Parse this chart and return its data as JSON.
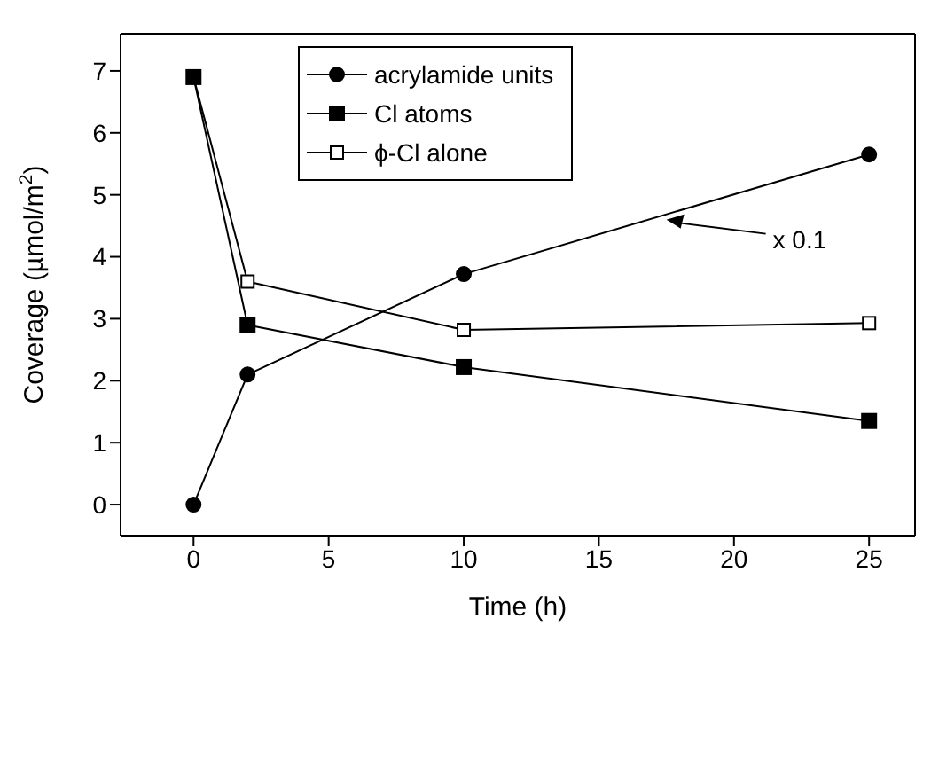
{
  "chart_data": {
    "type": "line",
    "xlabel": "Time (h)",
    "ylabel": "Coverage (µmol/m$^{2}$)",
    "x": [
      0,
      2,
      10,
      25
    ],
    "series": [
      {
        "name": "acrylamide units",
        "color": "#000000",
        "marker": "circle",
        "values": [
          0,
          2.1,
          3.72,
          5.65
        ]
      },
      {
        "name": "Cl atoms",
        "color": "#000000",
        "marker": "square",
        "values": [
          6.9,
          2.9,
          2.22,
          1.35
        ]
      },
      {
        "name": "ϕ-Cl alone",
        "color": "#000000",
        "marker": "square-open",
        "values": [
          6.9,
          3.6,
          2.82,
          2.93
        ]
      }
    ],
    "xlim": [
      -2.7,
      26.7
    ],
    "xticks": [
      0,
      5,
      10,
      15,
      20,
      25
    ],
    "ylim": [
      -0.5,
      7.6
    ],
    "yticks": [
      0,
      1,
      2,
      3,
      4,
      5,
      6,
      7
    ],
    "legend": "top left",
    "grid": false,
    "annotations": [
      {
        "text": "x 0.1",
        "x": 17.5,
        "y": 4.6
      }
    ]
  }
}
